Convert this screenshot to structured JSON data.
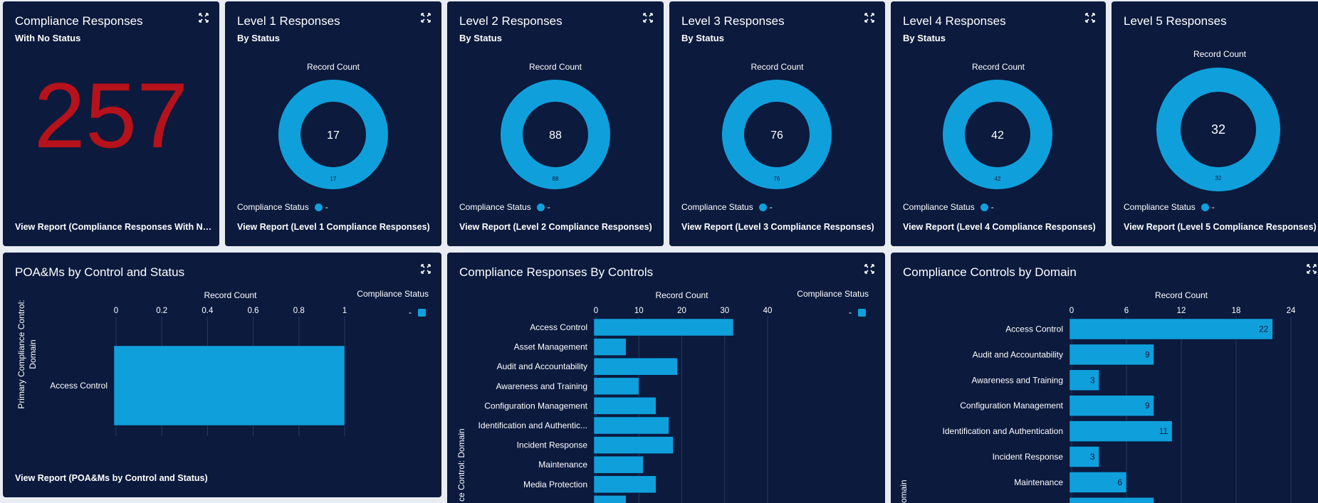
{
  "colors": {
    "background": "#0b1a3d",
    "accent": "#0fa0dc",
    "big_number": "#b5121b",
    "grid": "#2a3a5e"
  },
  "cards": {
    "no_status": {
      "title": "Compliance Responses",
      "subtitle": "With No Status",
      "value": "257",
      "link": "View Report (Compliance Responses With No S..."
    },
    "level1": {
      "title": "Level 1 Responses",
      "subtitle": "By Status",
      "axis_label": "Record Count",
      "total": "17",
      "slice": "17",
      "legend_title": "Compliance Status",
      "legend_value": "-",
      "link": "View Report (Level 1 Compliance Responses)"
    },
    "level2": {
      "title": "Level 2 Responses",
      "subtitle": "By Status",
      "axis_label": "Record Count",
      "total": "88",
      "slice": "88",
      "legend_title": "Compliance Status",
      "legend_value": "-",
      "link": "View Report (Level 2 Compliance Responses)"
    },
    "level3": {
      "title": "Level 3 Responses",
      "subtitle": "By Status",
      "axis_label": "Record Count",
      "total": "76",
      "slice": "76",
      "legend_title": "Compliance Status",
      "legend_value": "-",
      "link": "View Report (Level 3 Compliance Responses)"
    },
    "level4": {
      "title": "Level 4 Responses",
      "subtitle": "By Status",
      "axis_label": "Record Count",
      "total": "42",
      "slice": "42",
      "legend_title": "Compliance Status",
      "legend_value": "-",
      "link": "View Report (Level 4 Compliance Responses)"
    },
    "level5": {
      "title": "Level 5 Responses",
      "subtitle": "By Status",
      "axis_label": "Record Count",
      "total": "32",
      "slice": "32",
      "legend_title": "Compliance Status",
      "legend_value": "-",
      "link": "View Report (Level 5 Compliance Responses)"
    },
    "poam": {
      "title": "POA&Ms by Control and Status",
      "link": "View Report (POA&Ms by Control and Status)"
    },
    "by_controls": {
      "title": "Compliance Responses By Controls"
    },
    "by_domain": {
      "title": "Compliance Controls by Domain"
    }
  },
  "chart_data": [
    {
      "id": "poam",
      "type": "bar",
      "orientation": "horizontal",
      "title": "POA&Ms by Control and Status",
      "xlabel": "Record Count",
      "ylabel": "Primary Compliance Control: Domain",
      "legend_title": "Compliance Status",
      "legend_entries": [
        "-"
      ],
      "categories": [
        "Access Control"
      ],
      "values": [
        1
      ],
      "xlim": [
        0,
        1
      ],
      "ticks": [
        0,
        0.2,
        0.4,
        0.6,
        0.8,
        1
      ],
      "tick_labels": [
        "0",
        "0.2",
        "0.4",
        "0.6",
        "0.8",
        "1"
      ]
    },
    {
      "id": "by_controls",
      "type": "bar",
      "orientation": "horizontal",
      "title": "Compliance Responses By Controls",
      "xlabel": "Record Count",
      "ylabel": "Primary Compliance Control: Domain",
      "ylabel_visible": "ce Control: Domain",
      "legend_title": "Compliance Status",
      "legend_entries": [
        "-"
      ],
      "categories": [
        "Access Control",
        "Asset Management",
        "Audit and Accountability",
        "Awareness and Training",
        "Configuration Management",
        "Identification and Authentic...",
        "Incident Response",
        "Maintenance",
        "Media Protection",
        ""
      ],
      "values": [
        32,
        7,
        19,
        10,
        14,
        17,
        18,
        11,
        14,
        7
      ],
      "xlim": [
        0,
        40
      ],
      "ticks": [
        0,
        10,
        20,
        30,
        40
      ],
      "tick_labels": [
        "0",
        "10",
        "20",
        "30",
        "40"
      ]
    },
    {
      "id": "by_domain",
      "type": "bar",
      "orientation": "horizontal",
      "title": "Compliance Controls by Domain",
      "xlabel": "Record Count",
      "ylabel_visible": "omain",
      "categories": [
        "Access Control",
        "Audit and Accountability",
        "Awareness and Training",
        "Configuration Management",
        "Identification and Authentication",
        "Incident Response",
        "Maintenance",
        ""
      ],
      "values": [
        22,
        9,
        3,
        9,
        11,
        3,
        6,
        9
      ],
      "value_labels": [
        "22",
        "9",
        "3",
        "9",
        "11",
        "3",
        "6",
        ""
      ],
      "xlim": [
        0,
        24
      ],
      "ticks": [
        0,
        6,
        12,
        18,
        24
      ],
      "tick_labels": [
        "0",
        "6",
        "12",
        "18",
        "24"
      ]
    }
  ]
}
